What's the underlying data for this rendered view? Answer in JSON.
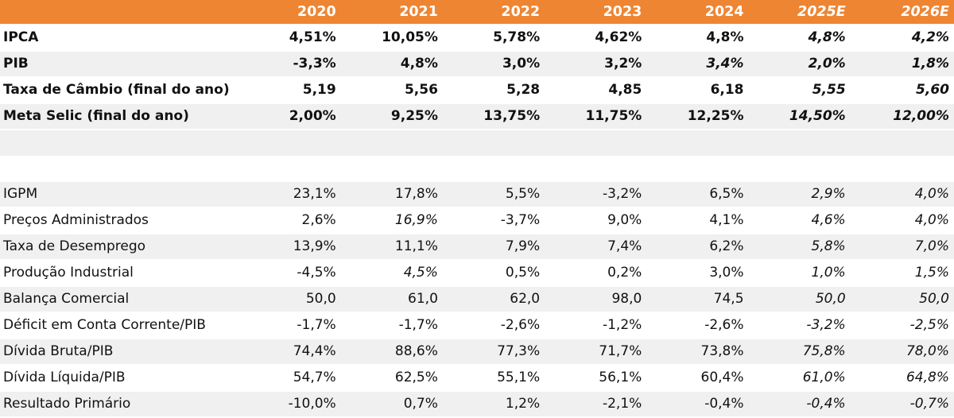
{
  "header": {
    "columns": [
      "",
      "2020",
      "2021",
      "2022",
      "2023",
      "2024",
      "2025E",
      "2026E"
    ],
    "italic": [
      false,
      false,
      false,
      false,
      false,
      false,
      true,
      true
    ]
  },
  "rows": [
    {
      "label": "IPCA",
      "values": [
        "4,51%",
        "10,05%",
        "5,78%",
        "4,62%",
        "4,8%",
        "4,8%",
        "4,2%"
      ],
      "italic": [
        false,
        false,
        false,
        false,
        false,
        true,
        true
      ],
      "bold": true,
      "shade": false
    },
    {
      "label": "PIB",
      "values": [
        "-3,3%",
        "4,8%",
        "3,0%",
        "3,2%",
        "3,4%",
        "2,0%",
        "1,8%"
      ],
      "italic": [
        false,
        false,
        false,
        false,
        true,
        true,
        true
      ],
      "bold": true,
      "shade": true
    },
    {
      "label": "Taxa de Câmbio (final do ano)",
      "values": [
        "5,19",
        "5,56",
        "5,28",
        "4,85",
        "6,18",
        "5,55",
        "5,60"
      ],
      "italic": [
        false,
        false,
        false,
        false,
        false,
        true,
        true
      ],
      "bold": true,
      "shade": false
    },
    {
      "label": "Meta Selic (final do ano)",
      "values": [
        "2,00%",
        "9,25%",
        "13,75%",
        "11,75%",
        "12,25%",
        "14,50%",
        "12,00%"
      ],
      "italic": [
        false,
        false,
        false,
        false,
        false,
        true,
        true
      ],
      "bold": true,
      "shade": true
    },
    {
      "label": "IGPM",
      "values": [
        "23,1%",
        "17,8%",
        "5,5%",
        "-3,2%",
        "6,5%",
        "2,9%",
        "4,0%"
      ],
      "italic": [
        false,
        false,
        false,
        false,
        false,
        true,
        true
      ],
      "bold": false,
      "shade": true
    },
    {
      "label": "Preços Administrados",
      "values": [
        "2,6%",
        "16,9%",
        "-3,7%",
        "9,0%",
        "4,1%",
        "4,6%",
        "4,0%"
      ],
      "italic": [
        false,
        true,
        false,
        false,
        false,
        true,
        true
      ],
      "bold": false,
      "shade": false
    },
    {
      "label": "Taxa de Desemprego",
      "values": [
        "13,9%",
        "11,1%",
        "7,9%",
        "7,4%",
        "6,2%",
        "5,8%",
        "7,0%"
      ],
      "italic": [
        false,
        false,
        false,
        false,
        false,
        true,
        true
      ],
      "bold": false,
      "shade": true
    },
    {
      "label": "Produção Industrial",
      "values": [
        "-4,5%",
        "4,5%",
        "0,5%",
        "0,2%",
        "3,0%",
        "1,0%",
        "1,5%"
      ],
      "italic": [
        false,
        true,
        false,
        false,
        false,
        true,
        true
      ],
      "bold": false,
      "shade": false
    },
    {
      "label": "Balança Comercial",
      "values": [
        "50,0",
        "61,0",
        "62,0",
        "98,0",
        "74,5",
        "50,0",
        "50,0"
      ],
      "italic": [
        false,
        false,
        false,
        false,
        false,
        true,
        true
      ],
      "bold": false,
      "shade": true
    },
    {
      "label": "Déficit em Conta Corrente/PIB",
      "values": [
        "-1,7%",
        "-1,7%",
        "-2,6%",
        "-1,2%",
        "-2,6%",
        "-3,2%",
        "-2,5%"
      ],
      "italic": [
        false,
        false,
        false,
        false,
        false,
        true,
        true
      ],
      "bold": false,
      "shade": false
    },
    {
      "label": "Dívida Bruta/PIB",
      "values": [
        "74,4%",
        "88,6%",
        "77,3%",
        "71,7%",
        "73,8%",
        "75,8%",
        "78,0%"
      ],
      "italic": [
        false,
        false,
        false,
        false,
        false,
        true,
        true
      ],
      "bold": false,
      "shade": true
    },
    {
      "label": "Dívida Líquida/PIB",
      "values": [
        "54,7%",
        "62,5%",
        "55,1%",
        "56,1%",
        "60,4%",
        "61,0%",
        "64,8%"
      ],
      "italic": [
        false,
        false,
        false,
        false,
        false,
        true,
        true
      ],
      "bold": false,
      "shade": false
    },
    {
      "label": "Resultado Primário",
      "values": [
        "-10,0%",
        "0,7%",
        "1,2%",
        "-2,1%",
        "-0,4%",
        "-0,4%",
        "-0,7%"
      ],
      "italic": [
        false,
        false,
        false,
        false,
        false,
        true,
        true
      ],
      "bold": false,
      "shade": true
    }
  ],
  "colors": {
    "header": "#ee8533",
    "shade": "#f0f0f0"
  }
}
